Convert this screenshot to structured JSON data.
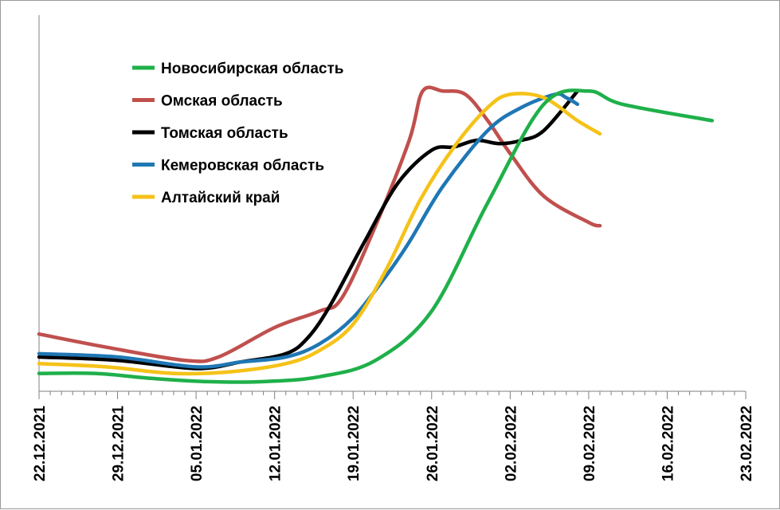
{
  "chart_data": {
    "type": "line",
    "title": "",
    "xlabel": "",
    "ylabel": "",
    "x_ticks": [
      "22.12.2021",
      "29.12.2021",
      "05.01.2022",
      "12.01.2022",
      "19.01.2022",
      "26.01.2022",
      "02.02.2022",
      "09.02.2022",
      "16.02.2022",
      "23.02.2022"
    ],
    "x_range_days": [
      0,
      63
    ],
    "y_range": [
      0,
      100
    ],
    "y_axis_shown": false,
    "grid": false,
    "legend_position": "top-left",
    "series": [
      {
        "name": "Новосибирская область",
        "color": "#1fb04a",
        "points": [
          [
            0,
            3
          ],
          [
            5,
            3
          ],
          [
            10,
            1.5
          ],
          [
            15,
            0.5
          ],
          [
            20,
            0.5
          ],
          [
            25,
            2
          ],
          [
            30,
            7
          ],
          [
            35,
            22
          ],
          [
            40,
            55
          ],
          [
            45,
            85
          ],
          [
            49,
            89
          ],
          [
            52,
            85
          ],
          [
            60,
            80
          ]
        ]
      },
      {
        "name": "Омская область",
        "color": "#c0504d",
        "points": [
          [
            0,
            15
          ],
          [
            6,
            11
          ],
          [
            13,
            7
          ],
          [
            16,
            8
          ],
          [
            21,
            17
          ],
          [
            25,
            22
          ],
          [
            27,
            26
          ],
          [
            30,
            48
          ],
          [
            33,
            74
          ],
          [
            34.2,
            89
          ],
          [
            36,
            89
          ],
          [
            38,
            88
          ],
          [
            40,
            80
          ],
          [
            42,
            70
          ],
          [
            45,
            57
          ],
          [
            49,
            49
          ],
          [
            50,
            48
          ]
        ]
      },
      {
        "name": "Томская область",
        "color": "#000000",
        "points": [
          [
            0,
            8
          ],
          [
            7,
            7
          ],
          [
            14,
            4.5
          ],
          [
            18,
            6.5
          ],
          [
            22,
            9
          ],
          [
            24,
            14
          ],
          [
            26,
            24
          ],
          [
            29,
            43
          ],
          [
            32,
            61
          ],
          [
            35,
            71
          ],
          [
            37,
            72
          ],
          [
            39,
            74
          ],
          [
            41,
            73
          ],
          [
            43,
            74
          ],
          [
            45,
            77
          ],
          [
            48,
            89
          ]
        ]
      },
      {
        "name": "Кемеровская область",
        "color": "#1f77b4",
        "points": [
          [
            0,
            9
          ],
          [
            7,
            8
          ],
          [
            14,
            5
          ],
          [
            18,
            6.5
          ],
          [
            22,
            8
          ],
          [
            25,
            12
          ],
          [
            28,
            20
          ],
          [
            31,
            33
          ],
          [
            33,
            43
          ],
          [
            36,
            60
          ],
          [
            40,
            77
          ],
          [
            43,
            84
          ],
          [
            46,
            88
          ],
          [
            47,
            87
          ],
          [
            48,
            85
          ]
        ]
      },
      {
        "name": "Алтайский край",
        "color": "#f5c218",
        "points": [
          [
            0,
            6
          ],
          [
            6,
            5
          ],
          [
            12,
            3
          ],
          [
            17,
            3.5
          ],
          [
            22,
            6
          ],
          [
            25,
            10
          ],
          [
            28,
            18
          ],
          [
            31,
            35
          ],
          [
            34,
            56
          ],
          [
            37,
            72
          ],
          [
            40,
            84
          ],
          [
            42,
            88
          ],
          [
            45,
            87
          ],
          [
            48,
            80
          ],
          [
            50,
            76
          ]
        ]
      }
    ]
  }
}
